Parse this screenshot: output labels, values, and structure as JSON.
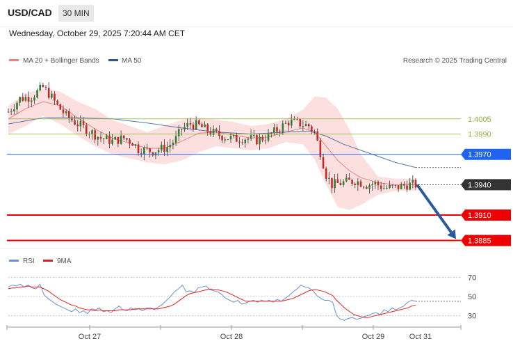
{
  "header": {
    "symbol": "USD/CAD",
    "timeframe": "30 MIN",
    "timestamp": "Wednesday, October 29, 2025 7:20:44 AM CET"
  },
  "legend": {
    "ma20": "MA 20 + Bollinger Bands",
    "ma50": "MA 50",
    "credit": "Research © 2025 Trading Central"
  },
  "rsi_legend": {
    "rsi": "RSI",
    "ma9": "9MA"
  },
  "colors": {
    "ma20": "#f08080",
    "ma50": "#2f5597",
    "bands_fill": "#fbd5d5",
    "candle_up": "#2e7d32",
    "candle_down": "#c62828",
    "resistance": "#8db33a",
    "pivot": "#1e64f0",
    "support": "#ee0000",
    "last_price": "#333333",
    "arrow": "#2a5a9a",
    "rsi": "#6b8fd6",
    "rsi_ma": "#e02020"
  },
  "chart_data": [
    {
      "type": "candlestick",
      "title": "USD/CAD",
      "x_ticks": [
        "Oct 27",
        "Oct 28",
        "Oct 29",
        "Oct 31"
      ],
      "ylim": [
        1.3875,
        1.4055
      ],
      "levels": [
        {
          "value": 1.4005,
          "label": "1.4005",
          "kind": "resistance"
        },
        {
          "value": 1.399,
          "label": "1.3990",
          "kind": "resistance"
        },
        {
          "value": 1.397,
          "label": "1.3970",
          "kind": "pivot"
        },
        {
          "value": 1.394,
          "label": "1.3940",
          "kind": "last"
        },
        {
          "value": 1.391,
          "label": "1.3910",
          "kind": "support"
        },
        {
          "value": 1.3885,
          "label": "1.3885",
          "kind": "support"
        }
      ],
      "close_path": [
        [
          0,
          1.4012
        ],
        [
          4,
          1.4025
        ],
        [
          8,
          1.4027
        ],
        [
          12,
          1.4036
        ],
        [
          14,
          1.403
        ],
        [
          17,
          1.4018
        ],
        [
          20,
          1.4008
        ],
        [
          24,
          1.4
        ],
        [
          28,
          1.3993
        ],
        [
          32,
          1.3986
        ],
        [
          36,
          1.3983
        ],
        [
          40,
          1.3986
        ],
        [
          43,
          1.3982
        ],
        [
          45,
          1.3975
        ],
        [
          50,
          1.3973
        ],
        [
          55,
          1.3977
        ],
        [
          58,
          1.3985
        ],
        [
          60,
          1.3995
        ],
        [
          63,
          1.4
        ],
        [
          66,
          1.3998
        ],
        [
          70,
          1.3992
        ],
        [
          74,
          1.3988
        ],
        [
          78,
          1.3985
        ],
        [
          82,
          1.3986
        ],
        [
          86,
          1.3984
        ],
        [
          90,
          1.3988
        ],
        [
          94,
          1.3996
        ],
        [
          97,
          1.4002
        ],
        [
          100,
          1.4001
        ],
        [
          104,
          1.3998
        ],
        [
          106,
          1.3992
        ],
        [
          108,
          1.3972
        ],
        [
          110,
          1.395
        ],
        [
          112,
          1.394
        ],
        [
          116,
          1.3942
        ],
        [
          120,
          1.3944
        ],
        [
          124,
          1.394
        ],
        [
          127,
          1.3941
        ],
        [
          130,
          1.3937
        ],
        [
          134,
          1.3937
        ],
        [
          138,
          1.394
        ],
        [
          141,
          1.394
        ]
      ],
      "ma20": [
        [
          0,
          1.4005
        ],
        [
          6,
          1.4015
        ],
        [
          12,
          1.4022
        ],
        [
          18,
          1.4018
        ],
        [
          24,
          1.4006
        ],
        [
          30,
          1.3995
        ],
        [
          36,
          1.3986
        ],
        [
          42,
          1.3981
        ],
        [
          48,
          1.3976
        ],
        [
          54,
          1.3976
        ],
        [
          60,
          1.3983
        ],
        [
          66,
          1.3991
        ],
        [
          72,
          1.3992
        ],
        [
          78,
          1.3989
        ],
        [
          84,
          1.3986
        ],
        [
          90,
          1.3987
        ],
        [
          96,
          1.3992
        ],
        [
          102,
          1.3996
        ],
        [
          106,
          1.3992
        ],
        [
          110,
          1.3978
        ],
        [
          114,
          1.3964
        ],
        [
          118,
          1.3954
        ],
        [
          122,
          1.3947
        ],
        [
          128,
          1.3942
        ],
        [
          134,
          1.394
        ],
        [
          141,
          1.394
        ]
      ],
      "bollinger_upper": [
        [
          0,
          1.4018
        ],
        [
          6,
          1.403
        ],
        [
          12,
          1.4035
        ],
        [
          18,
          1.4032
        ],
        [
          24,
          1.4022
        ],
        [
          30,
          1.4015
        ],
        [
          36,
          1.4004
        ],
        [
          42,
          1.3998
        ],
        [
          48,
          1.3992
        ],
        [
          54,
          1.3998
        ],
        [
          60,
          1.4004
        ],
        [
          66,
          1.4006
        ],
        [
          72,
          1.4004
        ],
        [
          78,
          1.4002
        ],
        [
          84,
          1.3998
        ],
        [
          90,
          1.4
        ],
        [
          96,
          1.4005
        ],
        [
          102,
          1.4014
        ],
        [
          106,
          1.4027
        ],
        [
          110,
          1.4026
        ],
        [
          114,
          1.4015
        ],
        [
          118,
          1.3995
        ],
        [
          122,
          1.397
        ],
        [
          128,
          1.3948
        ],
        [
          134,
          1.3946
        ],
        [
          141,
          1.3946
        ]
      ],
      "bollinger_lower": [
        [
          0,
          1.399
        ],
        [
          6,
          1.3998
        ],
        [
          12,
          1.4008
        ],
        [
          18,
          1.4
        ],
        [
          24,
          1.3988
        ],
        [
          30,
          1.3978
        ],
        [
          36,
          1.397
        ],
        [
          42,
          1.3966
        ],
        [
          48,
          1.3962
        ],
        [
          54,
          1.396
        ],
        [
          60,
          1.3964
        ],
        [
          66,
          1.3972
        ],
        [
          72,
          1.3978
        ],
        [
          78,
          1.3976
        ],
        [
          84,
          1.3974
        ],
        [
          90,
          1.3976
        ],
        [
          96,
          1.3982
        ],
        [
          102,
          1.398
        ],
        [
          106,
          1.3965
        ],
        [
          110,
          1.394
        ],
        [
          114,
          1.3918
        ],
        [
          118,
          1.3915
        ],
        [
          122,
          1.392
        ],
        [
          128,
          1.393
        ],
        [
          134,
          1.3934
        ],
        [
          141,
          1.3934
        ]
      ],
      "ma50": [
        [
          0,
          1.4
        ],
        [
          12,
          1.4006
        ],
        [
          24,
          1.4006
        ],
        [
          36,
          1.4005
        ],
        [
          48,
          1.4001
        ],
        [
          60,
          1.3996
        ],
        [
          72,
          1.3992
        ],
        [
          84,
          1.399
        ],
        [
          96,
          1.3992
        ],
        [
          104,
          1.3993
        ],
        [
          110,
          1.3988
        ],
        [
          116,
          1.398
        ],
        [
          122,
          1.3974
        ],
        [
          128,
          1.3968
        ],
        [
          134,
          1.3962
        ],
        [
          141,
          1.3957
        ]
      ],
      "projection": {
        "from": [
          141,
          1.394
        ],
        "to": [
          154,
          1.3885
        ]
      }
    },
    {
      "type": "line",
      "title": "RSI",
      "y_ticks": [
        70,
        50,
        30
      ],
      "ylim": [
        20,
        80
      ],
      "series": [
        {
          "name": "RSI",
          "key": "rsi",
          "values": [
            60,
            62,
            61,
            63,
            60,
            62,
            59,
            58,
            63,
            52,
            48,
            45,
            42,
            40,
            38,
            36,
            34,
            37,
            33,
            35,
            32,
            37,
            36,
            38,
            34,
            35,
            33,
            37,
            40,
            36,
            35,
            38,
            36,
            37,
            35,
            38,
            38,
            36,
            39,
            42,
            46,
            50,
            55,
            58,
            62,
            55,
            56,
            54,
            59,
            60,
            61,
            57,
            56,
            55,
            52,
            48,
            46,
            44,
            46,
            42,
            43,
            45,
            46,
            44,
            46,
            45,
            46,
            44,
            47,
            45,
            48,
            51,
            55,
            58,
            62,
            60,
            59,
            56,
            51,
            48,
            46,
            46,
            44,
            30,
            26,
            25,
            27,
            28,
            26,
            27,
            29,
            30,
            32,
            33,
            31,
            36,
            34,
            38,
            36,
            38,
            40,
            44,
            46,
            45
          ]
        },
        {
          "name": "9MA",
          "key": "rsi_ma",
          "values": [
            58,
            59,
            59,
            60,
            60,
            61,
            60,
            60,
            60,
            58,
            56,
            53,
            50,
            47,
            45,
            43,
            41,
            40,
            38,
            37,
            36,
            36,
            35,
            36,
            35,
            35,
            35,
            35,
            36,
            36,
            36,
            36,
            37,
            37,
            37,
            37,
            37,
            37,
            37,
            38,
            39,
            40,
            42,
            45,
            48,
            51,
            53,
            54,
            55,
            56,
            57,
            58,
            57,
            57,
            56,
            55,
            53,
            51,
            49,
            47,
            45,
            45,
            45,
            45,
            45,
            45,
            45,
            45,
            45,
            45,
            46,
            47,
            48,
            50,
            52,
            54,
            56,
            57,
            57,
            56,
            55,
            53,
            51,
            46,
            42,
            38,
            35,
            32,
            30,
            29,
            28,
            28,
            29,
            30,
            31,
            32,
            33,
            34,
            35,
            36,
            37,
            38,
            40,
            41
          ]
        }
      ]
    }
  ]
}
